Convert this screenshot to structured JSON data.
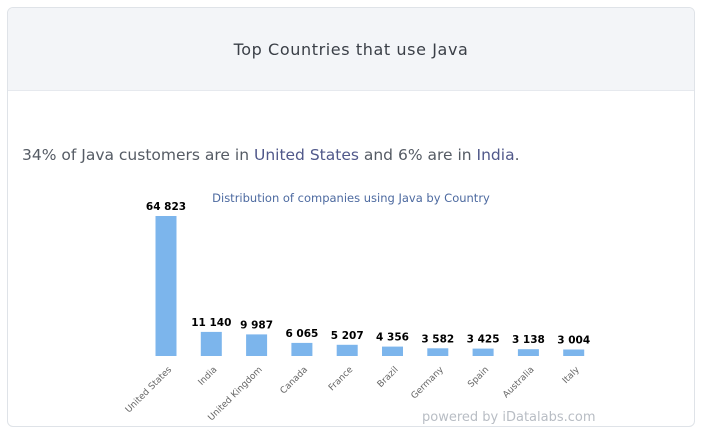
{
  "header": {
    "title": "Top Countries that use Java"
  },
  "summary": {
    "part1": "34% of Java customers are in ",
    "country1": "United States",
    "part2": " and 6% are in ",
    "country2": "India",
    "part3": "."
  },
  "footer": {
    "powered_by": "powered by iDatalabs.com"
  },
  "colors": {
    "bar": "#7cb5ec",
    "title": "#4d6aa0",
    "header_bg": "#f3f5f8"
  },
  "chart_data": {
    "type": "bar",
    "title": "Distribution of companies using Java by Country",
    "xlabel": "",
    "ylabel": "",
    "categories": [
      "United States",
      "India",
      "United Kingdom",
      "Canada",
      "France",
      "Brazil",
      "Germany",
      "Spain",
      "Australia",
      "Italy"
    ],
    "values": [
      64823,
      11140,
      9987,
      6065,
      5207,
      4356,
      3582,
      3425,
      3138,
      3004
    ],
    "data_labels": [
      "64 823",
      "11 140",
      "9 987",
      "6 065",
      "5 207",
      "4 356",
      "3 582",
      "3 425",
      "3 138",
      "3 004"
    ],
    "ylim": [
      0,
      64823
    ],
    "grid": false,
    "legend": "none"
  }
}
